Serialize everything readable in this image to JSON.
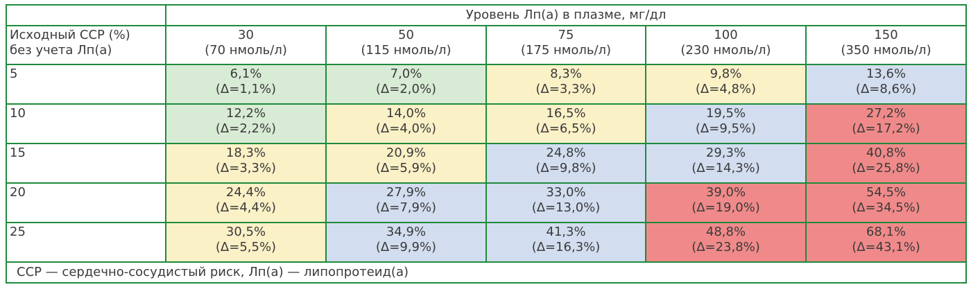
{
  "header": {
    "title": "Уровень Лп(а) в плазме, мг/дл",
    "row_label": [
      "Исходный ССР (%)",
      "без учета Лп(а)"
    ],
    "columns": [
      {
        "mg": "30",
        "nmol": "(70 нмоль/л)"
      },
      {
        "mg": "50",
        "nmol": "(115 нмоль/л)"
      },
      {
        "mg": "75",
        "nmol": "(175 нмоль/л)"
      },
      {
        "mg": "100",
        "nmol": "(230 нмоль/л)"
      },
      {
        "mg": "150",
        "nmol": "(350 нмоль/л)"
      }
    ]
  },
  "rows": [
    {
      "label": "5",
      "cells": [
        {
          "value": "6,1%",
          "delta": "(Δ=1,1%)",
          "color": "#d8ecd5"
        },
        {
          "value": "7,0%",
          "delta": "(Δ=2,0%)",
          "color": "#d8ecd5"
        },
        {
          "value": "8,3%",
          "delta": "(Δ=3,3%)",
          "color": "#fbf1c7"
        },
        {
          "value": "9,8%",
          "delta": "(Δ=4,8%)",
          "color": "#fbf1c7"
        },
        {
          "value": "13,6%",
          "delta": "(Δ=8,6%)",
          "color": "#d2ddef"
        }
      ]
    },
    {
      "label": "10",
      "cells": [
        {
          "value": "12,2%",
          "delta": "(Δ=2,2%)",
          "color": "#d8ecd5"
        },
        {
          "value": "14,0%",
          "delta": "(Δ=4,0%)",
          "color": "#fbf1c7"
        },
        {
          "value": "16,5%",
          "delta": "(Δ=6,5%)",
          "color": "#fbf1c7"
        },
        {
          "value": "19,5%",
          "delta": "(Δ=9,5%)",
          "color": "#d2ddef"
        },
        {
          "value": "27,2%",
          "delta": "(Δ=17,2%)",
          "color": "#f08a8a"
        }
      ]
    },
    {
      "label": "15",
      "cells": [
        {
          "value": "18,3%",
          "delta": "(Δ=3,3%)",
          "color": "#fbf1c7"
        },
        {
          "value": "20,9%",
          "delta": "(Δ=5,9%)",
          "color": "#fbf1c7"
        },
        {
          "value": "24,8%",
          "delta": "(Δ=9,8%)",
          "color": "#d2ddef"
        },
        {
          "value": "29,3%",
          "delta": "(Δ=14,3%)",
          "color": "#d2ddef"
        },
        {
          "value": "40,8%",
          "delta": "(Δ=25,8%)",
          "color": "#f08a8a"
        }
      ]
    },
    {
      "label": "20",
      "cells": [
        {
          "value": "24,4%",
          "delta": "(Δ=4,4%)",
          "color": "#fbf1c7"
        },
        {
          "value": "27,9%",
          "delta": "(Δ=7,9%)",
          "color": "#d2ddef"
        },
        {
          "value": "33,0%",
          "delta": "(Δ=13,0%)",
          "color": "#d2ddef"
        },
        {
          "value": "39,0%",
          "delta": "(Δ=19,0%)",
          "color": "#f08a8a"
        },
        {
          "value": "54,5%",
          "delta": "(Δ=34,5%)",
          "color": "#f08a8a"
        }
      ]
    },
    {
      "label": "25",
      "cells": [
        {
          "value": "30,5%",
          "delta": "(Δ=5,5%)",
          "color": "#fbf1c7"
        },
        {
          "value": "34,9%",
          "delta": "(Δ=9,9%)",
          "color": "#d2ddef"
        },
        {
          "value": "41,3%",
          "delta": "(Δ=16,3%)",
          "color": "#d2ddef"
        },
        {
          "value": "48,8%",
          "delta": "(Δ=23,8%)",
          "color": "#f08a8a"
        },
        {
          "value": "68,1%",
          "delta": "(Δ=43,1%)",
          "color": "#f08a8a"
        }
      ]
    }
  ],
  "footnote": "ССР — сердечно-сосудистый риск, Лп(а) — липопротеид(а)",
  "colors": {
    "border": "#1e8a3c",
    "low": "#d8ecd5",
    "moderate": "#fbf1c7",
    "high": "#d2ddef",
    "very_high": "#f08a8a"
  }
}
